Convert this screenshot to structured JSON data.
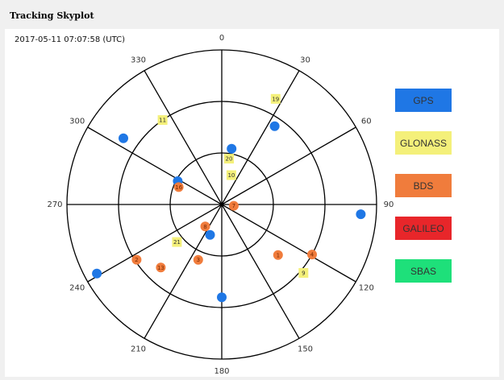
{
  "window": {
    "title": "Tracking Skyplot"
  },
  "timestamp": "2017-05-11 07:07:58 (UTC)",
  "skyplot": {
    "azimuth_labels": [
      "0",
      "30",
      "60",
      "90",
      "120",
      "150",
      "180",
      "210",
      "240",
      "270",
      "300",
      "330"
    ],
    "constellation_colors": {
      "GPS": "#1f77e5",
      "GLONASS": "#f4f07a",
      "BDS": "#f07c3c",
      "GALILEO": "#e8262a",
      "SBAS": "#1ee07a"
    },
    "satellites": [
      {
        "system": "GPS",
        "prn": "",
        "az": 10,
        "el": 57
      },
      {
        "system": "GPS",
        "prn": "",
        "az": 34,
        "el": 35
      },
      {
        "system": "GPS",
        "prn": "",
        "az": 304,
        "el": 21
      },
      {
        "system": "GPS",
        "prn": "",
        "az": 298,
        "el": 61
      },
      {
        "system": "GPS",
        "prn": "",
        "az": 94,
        "el": 9
      },
      {
        "system": "GPS",
        "prn": "",
        "az": 201,
        "el": 71
      },
      {
        "system": "GPS",
        "prn": "",
        "az": 180,
        "el": 36
      },
      {
        "system": "GPS",
        "prn": "",
        "az": 241,
        "el": 7
      },
      {
        "system": "GLONASS",
        "prn": "19",
        "az": 27,
        "el": 21
      },
      {
        "system": "GLONASS",
        "prn": "11",
        "az": 325,
        "el": 30
      },
      {
        "system": "GLONASS",
        "prn": "20",
        "az": 9,
        "el": 63
      },
      {
        "system": "GLONASS",
        "prn": "10",
        "az": 18,
        "el": 72
      },
      {
        "system": "GLONASS",
        "prn": "21",
        "az": 230,
        "el": 56
      },
      {
        "system": "GLONASS",
        "prn": "9",
        "az": 130,
        "el": 28
      },
      {
        "system": "BDS",
        "prn": "16",
        "az": 292,
        "el": 63
      },
      {
        "system": "BDS",
        "prn": "7",
        "az": 96,
        "el": 83
      },
      {
        "system": "BDS",
        "prn": "8",
        "az": 217,
        "el": 74
      },
      {
        "system": "BDS",
        "prn": "2",
        "az": 237,
        "el": 31
      },
      {
        "system": "BDS",
        "prn": "13",
        "az": 224,
        "el": 39
      },
      {
        "system": "BDS",
        "prn": "3",
        "az": 203,
        "el": 55
      },
      {
        "system": "BDS",
        "prn": "1",
        "az": 132,
        "el": 46
      },
      {
        "system": "BDS",
        "prn": "4",
        "az": 119,
        "el": 30
      }
    ]
  },
  "legend": [
    {
      "label": "GPS",
      "color": "#1f77e5"
    },
    {
      "label": "GLONASS",
      "color": "#f4f07a"
    },
    {
      "label": "BDS",
      "color": "#f07c3c"
    },
    {
      "label": "GALILEO",
      "color": "#e8262a"
    },
    {
      "label": "SBAS",
      "color": "#1ee07a"
    }
  ]
}
